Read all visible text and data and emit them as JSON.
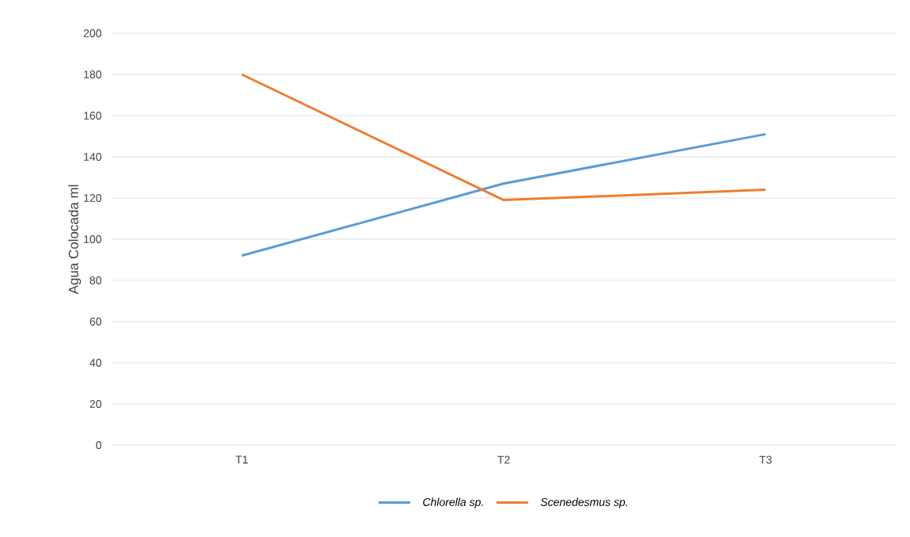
{
  "chart_data": {
    "type": "line",
    "ylabel": "Agua Colocada ml",
    "categories": [
      "T1",
      "T2",
      "T3"
    ],
    "series": [
      {
        "name": "Chlorella sp.",
        "color": "#5b9bd5",
        "values": [
          92,
          127,
          151
        ]
      },
      {
        "name": "Scenedesmus sp.",
        "color": "#ed7d31",
        "values": [
          180,
          119,
          124
        ]
      }
    ],
    "ylim": [
      0,
      200
    ],
    "yticks": [
      0,
      20,
      40,
      60,
      80,
      100,
      120,
      140,
      160,
      180,
      200
    ],
    "grid": "y",
    "legend": "bottom",
    "marker": "none",
    "line_style": "solid"
  }
}
